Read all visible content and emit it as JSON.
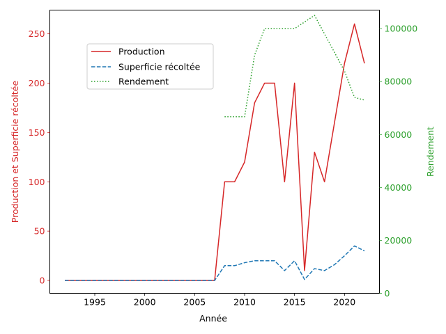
{
  "chart_data": {
    "type": "line",
    "xlabel": "Année",
    "ylabel_left": "Production et Superficie récoltée",
    "ylabel_right": "Rendement",
    "xlim": [
      1990.5,
      2023.5
    ],
    "ylim_left": [
      -13,
      274
    ],
    "ylim_right": [
      0,
      107000
    ],
    "x_ticks": [
      1995,
      2000,
      2005,
      2010,
      2015,
      2020
    ],
    "y_ticks_left": [
      0,
      50,
      100,
      150,
      200,
      250
    ],
    "y_ticks_right": [
      0,
      20000,
      40000,
      60000,
      80000,
      100000
    ],
    "legend_position": "upper-left",
    "grid": false,
    "colors": {
      "left_axis": "#d62728",
      "right_axis": "#2ca02c",
      "production": "#d62728",
      "area": "#1f77b4",
      "yield": "#2ca02c"
    },
    "x": [
      1992,
      1993,
      1994,
      1995,
      1996,
      1997,
      1998,
      1999,
      2000,
      2001,
      2002,
      2003,
      2004,
      2005,
      2006,
      2007,
      2008,
      2009,
      2010,
      2011,
      2012,
      2013,
      2014,
      2015,
      2016,
      2017,
      2018,
      2019,
      2020,
      2021,
      2022
    ],
    "series": [
      {
        "name": "Production",
        "axis": "left",
        "style": "solid",
        "values": [
          0,
          0,
          0,
          0,
          0,
          0,
          0,
          0,
          0,
          0,
          0,
          0,
          0,
          0,
          0,
          0,
          100,
          100,
          120,
          180,
          200,
          200,
          100,
          200,
          10,
          130,
          100,
          160,
          220,
          260,
          220
        ]
      },
      {
        "name": "Superficie récoltée",
        "axis": "left",
        "style": "dashed",
        "values": [
          0,
          0,
          0,
          0,
          0,
          0,
          0,
          0,
          0,
          0,
          0,
          0,
          0,
          0,
          0,
          0,
          15,
          15,
          18,
          20,
          20,
          20,
          10,
          20,
          1,
          12,
          10,
          16,
          25,
          35,
          30
        ]
      },
      {
        "name": "Rendement",
        "axis": "right",
        "style": "dotted",
        "values": [
          null,
          null,
          null,
          null,
          null,
          null,
          null,
          null,
          null,
          null,
          null,
          null,
          null,
          null,
          null,
          null,
          66700,
          66700,
          66700,
          90000,
          100000,
          100000,
          100000,
          100000,
          102500,
          105000,
          98000,
          91000,
          84000,
          74000,
          73000
        ]
      }
    ]
  }
}
